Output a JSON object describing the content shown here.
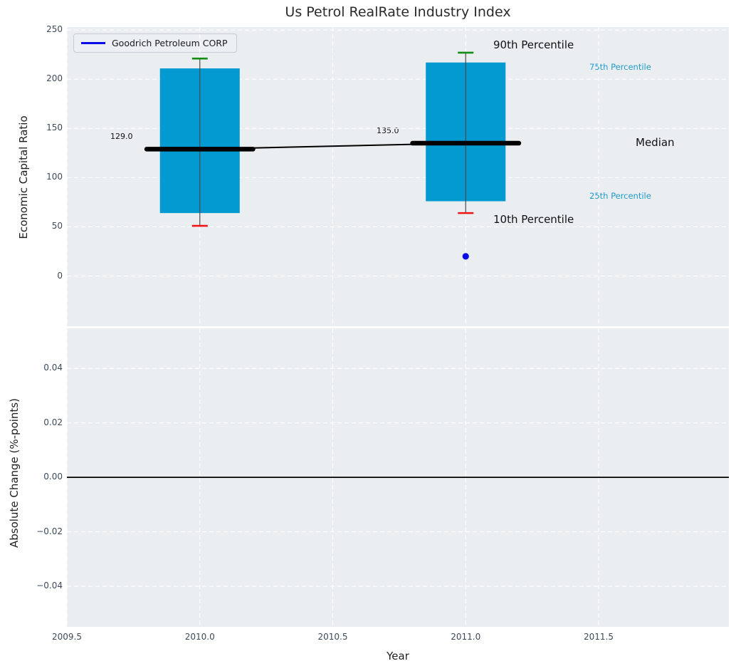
{
  "title": "Us Petrol RealRate Industry Index",
  "legend": {
    "label": "Goodrich Petroleum CORP"
  },
  "colors": {
    "plot_bg": "#eaeef0",
    "grid": "#ffffff",
    "bar_blue": "#0399d1",
    "median_black": "#000000",
    "whisker_gray": "#4a4a4a",
    "p90_green": "#128c12",
    "p10_red": "#ee1515",
    "company_blue": "#0b0be6",
    "percentile_text_blue": "#1f9bcb",
    "tick_text": "#3d4a5a",
    "zero_line": "#000000"
  },
  "annotations": {
    "p90_label": "90th Percentile",
    "p75_label": "75th Percentile",
    "median_label": "Median",
    "p25_label": "25th Percentile",
    "p10_label": "10th Percentile",
    "median_value_2010": "129.0",
    "median_value_2011": "135.0"
  },
  "chart_data": [
    {
      "type": "box",
      "title": "Us Petrol RealRate Industry Index",
      "xlabel": "Year",
      "ylabel": "Economic Capital Ratio",
      "x": [
        2010,
        2011
      ],
      "box_width": 0.3,
      "median_bar_halfwidth": 0.2,
      "series": [
        {
          "name": "90th Percentile",
          "values": [
            221,
            227
          ]
        },
        {
          "name": "75th Percentile",
          "values": [
            211,
            217
          ]
        },
        {
          "name": "Median",
          "values": [
            129,
            135
          ]
        },
        {
          "name": "25th Percentile",
          "values": [
            64,
            76
          ]
        },
        {
          "name": "10th Percentile",
          "values": [
            51,
            64
          ]
        },
        {
          "name": "Goodrich Petroleum CORP",
          "type": "scatter",
          "points": [
            {
              "x": 2011,
              "y": 20
            }
          ]
        }
      ],
      "median_labels": [
        "129.0",
        "135.0"
      ],
      "xlim": [
        2009.5,
        2011.99
      ],
      "ylim": [
        -51,
        253
      ],
      "grid": true,
      "legend_position": "upper left",
      "x_ticks": [
        {
          "label": "2009.5",
          "value": 2009.5
        },
        {
          "label": "2010.0",
          "value": 2010.0
        },
        {
          "label": "2010.5",
          "value": 2010.5
        },
        {
          "label": "2011.0",
          "value": 2011.0
        },
        {
          "label": "2011.5",
          "value": 2011.5
        }
      ],
      "y_ticks": [
        {
          "label": "0",
          "value": 0
        },
        {
          "label": "50",
          "value": 50
        },
        {
          "label": "100",
          "value": 100
        },
        {
          "label": "150",
          "value": 150
        },
        {
          "label": "200",
          "value": 200
        },
        {
          "label": "250",
          "value": 250
        }
      ]
    },
    {
      "type": "line",
      "xlabel": "Year",
      "ylabel": "Absolute Change (%-points)",
      "series": [],
      "zero_line": 0.0,
      "xlim": [
        2009.5,
        2011.99
      ],
      "ylim": [
        -0.0549,
        0.0547
      ],
      "grid": true,
      "y_ticks": [
        {
          "label": "0.04",
          "value": 0.04
        },
        {
          "label": "0.02",
          "value": 0.02
        },
        {
          "label": "0.00",
          "value": 0.0
        },
        {
          "label": "−0.02",
          "value": -0.02
        },
        {
          "label": "−0.04",
          "value": -0.04
        }
      ]
    }
  ]
}
